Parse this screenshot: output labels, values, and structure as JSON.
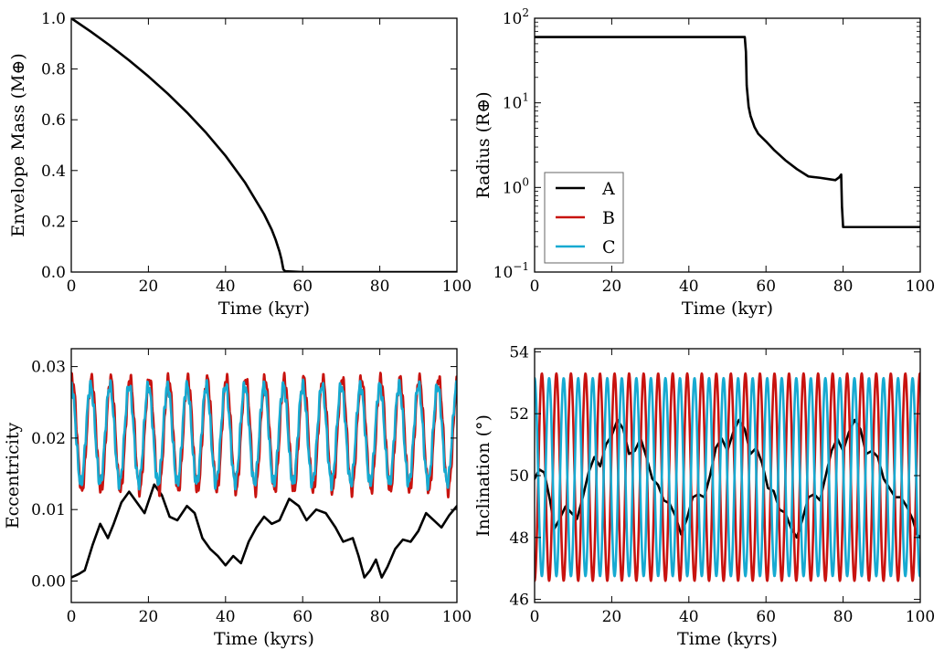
{
  "colors": {
    "A": "#000000",
    "B": "#c8130f",
    "C": "#17aad1"
  },
  "chart_data": [
    {
      "type": "line",
      "id": "envelope-mass",
      "xlabel": "Time (kyr)",
      "ylabel": "Envelope Mass (M⊕)",
      "xlim": [
        0,
        100
      ],
      "ylim": [
        0,
        1
      ],
      "xticks": [
        0,
        20,
        40,
        60,
        80,
        100
      ],
      "yticks": [
        0.0,
        0.2,
        0.4,
        0.6,
        0.8,
        1.0
      ],
      "ytick_labels": [
        "0.0",
        "0.2",
        "0.4",
        "0.6",
        "0.8",
        "1.0"
      ],
      "series": [
        {
          "name": "A",
          "color": "#000000",
          "x": [
            0,
            5,
            10,
            15,
            20,
            25,
            30,
            35,
            40,
            45,
            50,
            52,
            53,
            54,
            54.5,
            55,
            55.5,
            60,
            80,
            100
          ],
          "y": [
            1.0,
            0.948,
            0.893,
            0.834,
            0.771,
            0.703,
            0.629,
            0.548,
            0.458,
            0.354,
            0.228,
            0.166,
            0.127,
            0.08,
            0.05,
            0.01,
            0.003,
            0.0,
            0.0,
            0.0
          ]
        }
      ]
    },
    {
      "type": "line",
      "id": "radius",
      "xlabel": "Time (kyr)",
      "ylabel": "Radius (R⊕)",
      "xlim": [
        0,
        100
      ],
      "ylim": [
        0.1,
        100
      ],
      "yscale": "log",
      "xticks": [
        0,
        20,
        40,
        60,
        80,
        100
      ],
      "yticks": [
        0.1,
        1,
        10,
        100
      ],
      "ytick_labels": [
        [
          "10",
          "−1"
        ],
        [
          "10",
          "0"
        ],
        [
          "10",
          "1"
        ],
        [
          "10",
          "2"
        ]
      ],
      "legend": {
        "placement": "lower-left",
        "entries": [
          "A",
          "B",
          "C"
        ]
      },
      "series": [
        {
          "name": "A",
          "color": "#000000",
          "x": [
            0,
            54.5,
            54.8,
            55,
            55.5,
            56,
            57,
            58,
            60,
            62,
            65,
            68,
            71,
            74,
            77,
            78,
            79,
            79.5,
            79.7,
            80,
            100
          ],
          "y": [
            60,
            60,
            40,
            16,
            9,
            7,
            5.2,
            4.3,
            3.5,
            2.8,
            2.1,
            1.65,
            1.35,
            1.3,
            1.24,
            1.22,
            1.32,
            1.42,
            0.6,
            0.34,
            0.34
          ]
        }
      ]
    },
    {
      "type": "line",
      "id": "eccentricity",
      "xlabel": "Time (kyrs)",
      "ylabel": "Eccentricity",
      "xlim": [
        0,
        100
      ],
      "ylim": [
        -0.003,
        0.0325
      ],
      "xticks": [
        0,
        20,
        40,
        60,
        80,
        100
      ],
      "yticks": [
        0.0,
        0.01,
        0.02,
        0.03
      ],
      "ytick_labels": [
        "0.00",
        "0.01",
        "0.02",
        "0.03"
      ],
      "series": [
        {
          "name": "A",
          "color": "#000000",
          "x": [
            0,
            2,
            3.5,
            5.5,
            7.5,
            9.5,
            11,
            13,
            15,
            17,
            19,
            21.5,
            23.5,
            25.5,
            27.5,
            30,
            32,
            34,
            36,
            38,
            40,
            42,
            44,
            46,
            48,
            50,
            52,
            54,
            56.5,
            59,
            61,
            63.5,
            66,
            68.5,
            70.5,
            73,
            74.5,
            76,
            77.5,
            79,
            80.5,
            82,
            84,
            86,
            88,
            90,
            92,
            94,
            96,
            98,
            100
          ],
          "y": [
            0.0005,
            0.001,
            0.0015,
            0.005,
            0.008,
            0.006,
            0.008,
            0.011,
            0.0125,
            0.011,
            0.0095,
            0.0135,
            0.012,
            0.009,
            0.0085,
            0.0105,
            0.0095,
            0.006,
            0.0045,
            0.0035,
            0.0022,
            0.0035,
            0.0025,
            0.0055,
            0.0075,
            0.009,
            0.008,
            0.0085,
            0.0115,
            0.0105,
            0.0085,
            0.01,
            0.0095,
            0.0075,
            0.0055,
            0.006,
            0.0035,
            0.0005,
            0.0015,
            0.003,
            0.0005,
            0.002,
            0.0045,
            0.0058,
            0.0055,
            0.007,
            0.0095,
            0.0085,
            0.0075,
            0.0092,
            0.0105
          ]
        },
        {
          "name": "B",
          "color": "#c8130f",
          "period": 5.0,
          "phase": 0.95,
          "mean": 0.0205,
          "amplitude": 0.0078,
          "x_range": [
            0,
            100
          ]
        },
        {
          "name": "C",
          "color": "#17aad1",
          "period": 5.0,
          "phase": 0.0,
          "mean": 0.0205,
          "amplitude": 0.0068,
          "x_range": [
            0,
            100
          ]
        }
      ]
    },
    {
      "type": "line",
      "id": "inclination",
      "xlabel": "Time (kyrs)",
      "ylabel": "Inclination (°)",
      "xlim": [
        0,
        100
      ],
      "ylim": [
        45.9,
        54.1
      ],
      "xticks": [
        0,
        20,
        40,
        60,
        80,
        100
      ],
      "yticks": [
        46,
        48,
        50,
        52,
        54
      ],
      "ytick_labels": [
        "46",
        "48",
        "50",
        "52",
        "54"
      ],
      "series": [
        {
          "name": "A",
          "color": "#000000",
          "x": [
            0,
            1.2,
            2.5,
            4,
            5.2,
            6.5,
            8,
            9.5,
            11,
            12.5,
            14,
            15.5,
            17,
            18.5,
            20,
            21.5,
            23,
            24.5,
            26,
            27.5,
            29,
            30.5,
            32,
            33.5,
            35,
            36.5,
            38,
            39.5,
            41,
            42.5,
            44,
            45.5,
            47,
            48.5,
            50,
            51.5,
            53,
            54.5,
            56,
            57.5,
            59,
            60.5,
            62,
            63.5,
            65,
            66.5,
            68,
            69.5,
            71,
            72.5,
            74,
            75.5,
            77,
            78.5,
            80,
            81.5,
            83,
            84.5,
            86,
            87.5,
            89,
            90.5,
            92,
            93.5,
            95,
            96.5,
            98,
            99.2,
            100
          ],
          "y": [
            49.9,
            50.2,
            50.1,
            49.2,
            48.3,
            48.6,
            49.0,
            48.8,
            48.6,
            49.3,
            50.1,
            50.6,
            50.3,
            51.0,
            51.3,
            51.8,
            51.5,
            50.7,
            50.8,
            51.2,
            50.6,
            49.9,
            49.7,
            49.2,
            49.1,
            48.7,
            48.1,
            48.6,
            49.3,
            49.4,
            49.3,
            50.0,
            50.9,
            51.2,
            50.8,
            51.4,
            51.8,
            51.5,
            50.7,
            50.9,
            50.4,
            49.6,
            49.5,
            48.9,
            48.8,
            48.3,
            48.0,
            48.6,
            49.3,
            49.4,
            49.2,
            50.0,
            50.8,
            51.2,
            50.8,
            51.4,
            51.8,
            51.5,
            50.7,
            50.8,
            50.6,
            49.9,
            49.6,
            49.3,
            49.3,
            49.0,
            48.6,
            48.1,
            48.0
          ]
        },
        {
          "name": "B",
          "color": "#c8130f",
          "period": 3.77,
          "phase": 0.5,
          "mean": 49.95,
          "amplitude": 3.35,
          "x_range": [
            0,
            100
          ]
        },
        {
          "name": "C",
          "color": "#17aad1",
          "period": 3.77,
          "phase": 0.0,
          "mean": 49.95,
          "amplitude": 3.2,
          "x_range": [
            0,
            100
          ]
        }
      ]
    }
  ]
}
